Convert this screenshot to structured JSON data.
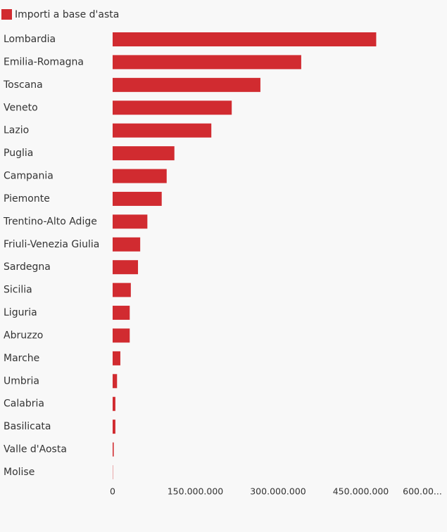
{
  "chart_data": {
    "type": "bar",
    "orientation": "horizontal",
    "categories": [
      "Lombardia",
      "Emilia-Romagna",
      "Toscana",
      "Veneto",
      "Lazio",
      "Puglia",
      "Campania",
      "Piemonte",
      "Trentino-Alto Adige",
      "Friuli-Venezia Giulia",
      "Sardegna",
      "Sicilia",
      "Liguria",
      "Abruzzo",
      "Marche",
      "Umbria",
      "Calabria",
      "Basilicata",
      "Valle d'Aosta",
      "Molise"
    ],
    "series": [
      {
        "name": "Importi a base d'asta",
        "color": "#d12b30",
        "values": [
          478000000,
          342000000,
          268000000,
          216000000,
          179000000,
          112000000,
          98000000,
          89000000,
          63000000,
          50000000,
          46000000,
          33000000,
          31000000,
          31000000,
          14000000,
          8000000,
          5000000,
          5000000,
          2000000,
          500000
        ]
      }
    ],
    "xlim": [
      0,
      600000000
    ],
    "xticks": [
      0,
      {
        "value": 150000000,
        "label": "150.000.000"
      },
      {
        "value": 300000000,
        "label": "300.000.000"
      },
      {
        "value": 450000000,
        "label": "450.000.000"
      },
      {
        "value": 600000000,
        "label": "600.00..."
      }
    ],
    "legend": "top-left"
  }
}
